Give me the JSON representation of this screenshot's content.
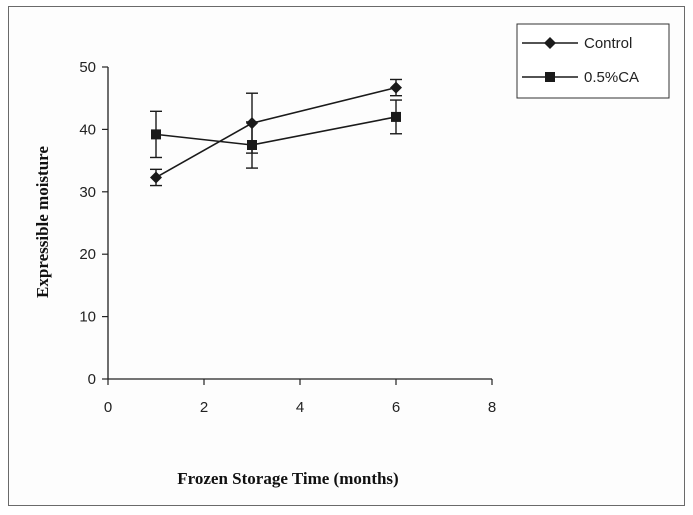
{
  "chart_data": {
    "type": "line",
    "xlabel": "Frozen Storage Time (months)",
    "ylabel": "Expressible moisture",
    "xlim": [
      0,
      8
    ],
    "ylim": [
      0,
      50
    ],
    "xticks": [
      0,
      2,
      4,
      6,
      8
    ],
    "yticks": [
      0,
      10,
      20,
      30,
      40,
      50
    ],
    "grid": false,
    "legend_position": "top-right",
    "series": [
      {
        "name": "Control",
        "marker": "diamond",
        "color": "#1a1a1a",
        "x": [
          1,
          3,
          6
        ],
        "y": [
          32.3,
          41.0,
          46.7
        ],
        "error": [
          1.3,
          4.8,
          1.3
        ]
      },
      {
        "name": "0.5%CA",
        "marker": "square",
        "color": "#1a1a1a",
        "x": [
          1,
          3,
          6
        ],
        "y": [
          39.2,
          37.5,
          42.0
        ],
        "error": [
          3.7,
          3.7,
          2.7
        ]
      }
    ]
  }
}
